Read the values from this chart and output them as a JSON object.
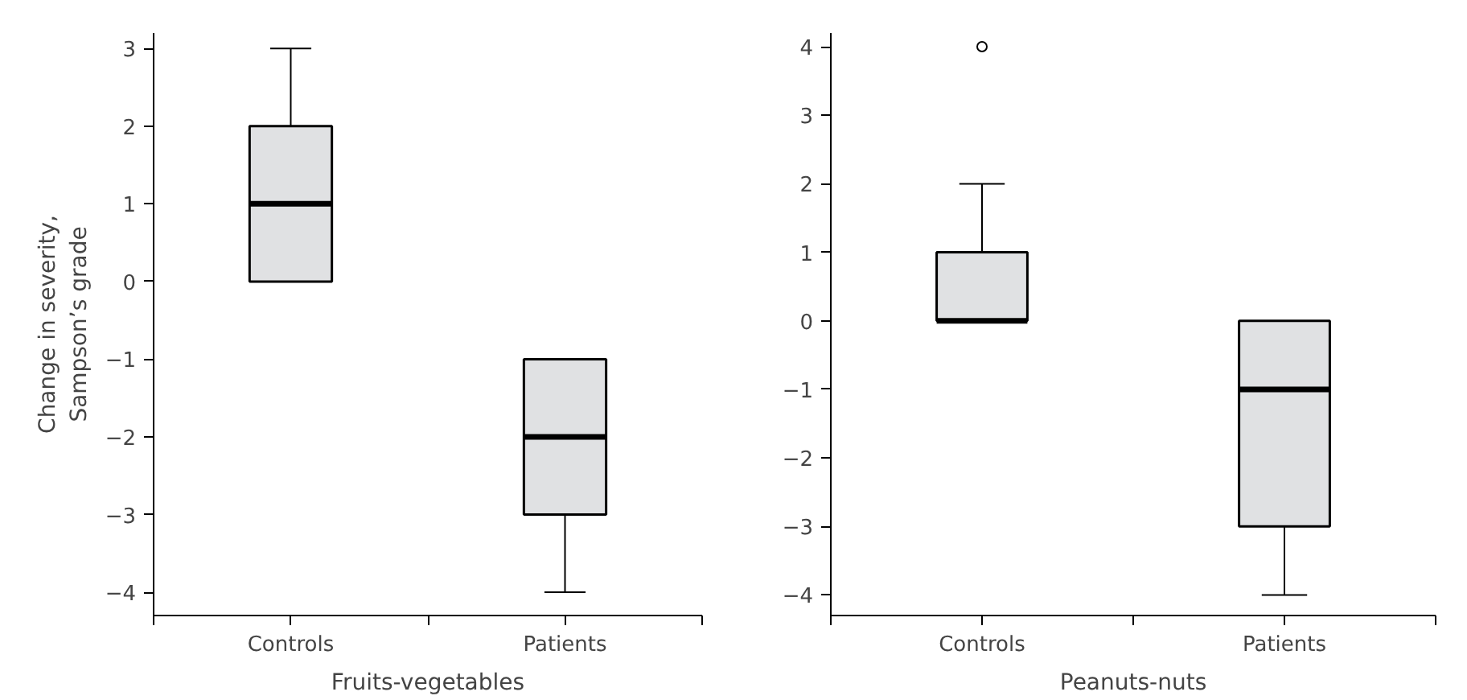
{
  "chart_data": [
    {
      "type": "box",
      "xlabel": "Fruits-vegetables",
      "ylabel": "Change in severity,\nSampson’s grade",
      "categories": [
        "Controls",
        "Patients"
      ],
      "ylim": [
        -4.3,
        3.2
      ],
      "yticks": [
        -4,
        -3,
        -2,
        -1,
        0,
        1,
        2,
        3
      ],
      "grid": false,
      "color": "#e0e1e3",
      "boxes": [
        {
          "low": 0,
          "q1": 0,
          "median": 1,
          "q3": 2,
          "high": 3
        },
        {
          "low": -4,
          "q1": -3,
          "median": -2,
          "q3": -1,
          "high": -1
        }
      ]
    },
    {
      "type": "box",
      "xlabel": "Peanuts-nuts",
      "categories": [
        "Controls",
        "Patients"
      ],
      "ylim": [
        -4.3,
        4.2
      ],
      "yticks": [
        -4,
        -3,
        -2,
        -1,
        0,
        1,
        2,
        3,
        4
      ],
      "grid": false,
      "color": "#e0e1e3",
      "boxes": [
        {
          "low": 0,
          "q1": 0,
          "median": 0,
          "q3": 1,
          "high": 2,
          "outliers": [
            4
          ]
        },
        {
          "low": -4,
          "q1": -3,
          "median": -1,
          "q3": 0,
          "high": 0
        }
      ]
    }
  ]
}
